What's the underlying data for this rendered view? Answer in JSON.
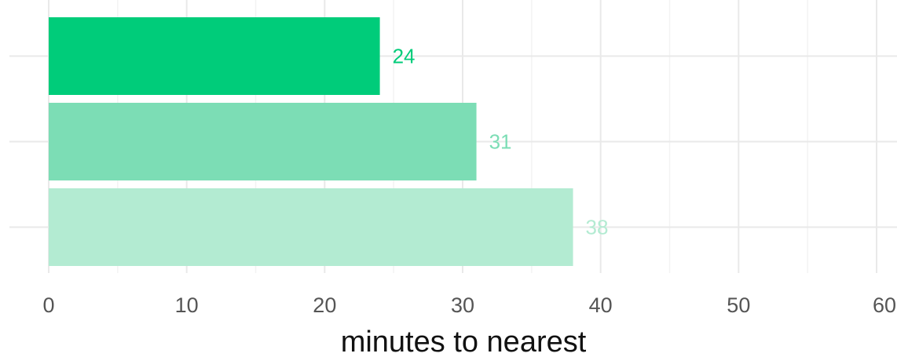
{
  "chart_data": {
    "type": "bar",
    "orientation": "horizontal",
    "categories": [
      "",
      "",
      ""
    ],
    "values": [
      24,
      31,
      38
    ],
    "data_labels": [
      "24",
      "31",
      "38"
    ],
    "colors": [
      "#00cc7a",
      "#7cddb5",
      "#b3ebd2"
    ],
    "xlabel": "minutes to nearest",
    "ylabel": "",
    "xlim": [
      0,
      60
    ],
    "x_ticks": [
      0,
      10,
      20,
      30,
      40,
      50,
      60
    ],
    "x_tick_labels": [
      "0",
      "10",
      "20",
      "30",
      "40",
      "50",
      "60"
    ],
    "grid": true,
    "legend": "none"
  }
}
